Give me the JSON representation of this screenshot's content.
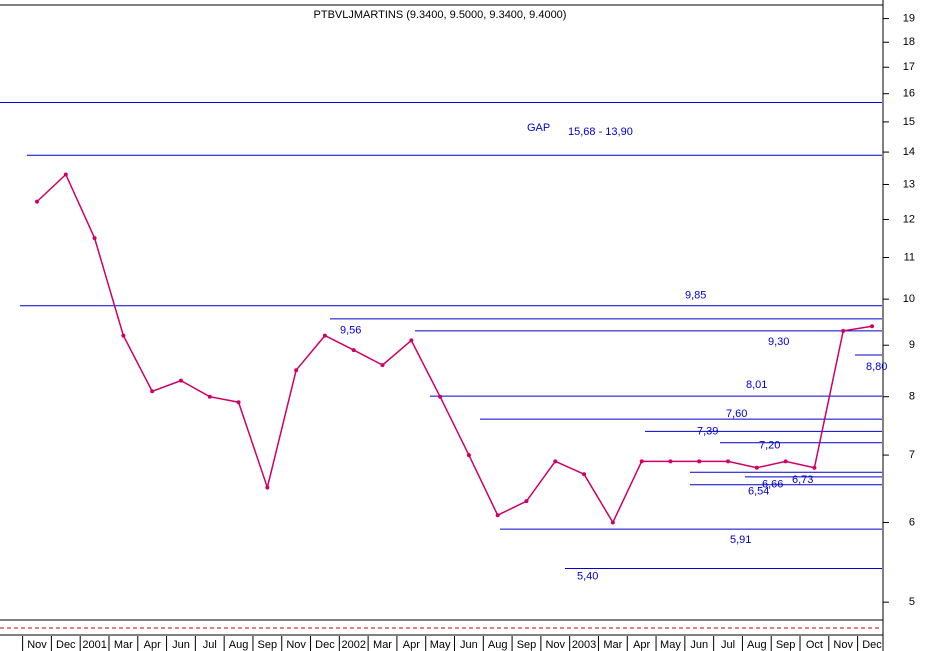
{
  "chart_data": {
    "type": "line",
    "title": "PTBVLJMARTINS (9.3400, 9.5000, 9.3400, 9.4000)",
    "categories": [
      "Nov",
      "Dec",
      "2001",
      "Mar",
      "Apr",
      "Jun",
      "Jul",
      "Aug",
      "Sep",
      "Nov",
      "Dec",
      "2002",
      "Mar",
      "Apr",
      "May",
      "Jun",
      "Aug",
      "Sep",
      "Nov",
      "2003",
      "Mar",
      "Apr",
      "May",
      "Jun",
      "Jul",
      "Aug",
      "Sep",
      "Oct",
      "Nov",
      "Dec"
    ],
    "values": [
      12.5,
      13.3,
      11.5,
      9.2,
      8.1,
      8.3,
      8.0,
      7.9,
      6.5,
      8.5,
      9.2,
      8.9,
      8.6,
      9.1,
      8.0,
      7.0,
      6.1,
      6.3,
      6.9,
      6.7,
      6.0,
      6.9,
      6.9,
      6.9,
      6.9,
      6.8,
      6.9,
      6.8,
      9.3,
      9.4
    ],
    "color": "#cc0066",
    "log_scale": true,
    "ylim": [
      4.8,
      19.6
    ],
    "yticks": [
      5,
      6,
      7,
      8,
      9,
      10,
      11,
      12,
      13,
      14,
      15,
      16,
      17,
      18,
      19
    ],
    "levels": [
      {
        "value": 9.85,
        "label": "9,85"
      },
      {
        "value": 9.56,
        "label": "9,56"
      },
      {
        "value": 9.3,
        "label": "9,30"
      },
      {
        "value": 8.8,
        "label": "8,80"
      },
      {
        "value": 8.01,
        "label": "8,01"
      },
      {
        "value": 7.6,
        "label": "7,60"
      },
      {
        "value": 7.39,
        "label": "7,39"
      },
      {
        "value": 7.2,
        "label": "7,20"
      },
      {
        "value": 6.73,
        "label": "6,73"
      },
      {
        "value": 6.66,
        "label": "6,66"
      },
      {
        "value": 6.54,
        "label": "6,54"
      },
      {
        "value": 5.91,
        "label": "5,91"
      },
      {
        "value": 5.4,
        "label": "5,40"
      }
    ],
    "gap": {
      "label": "GAP",
      "range_label": "15,68 - 13,90",
      "values": [
        15.68,
        13.9
      ]
    },
    "level_color": "#0000cc"
  }
}
